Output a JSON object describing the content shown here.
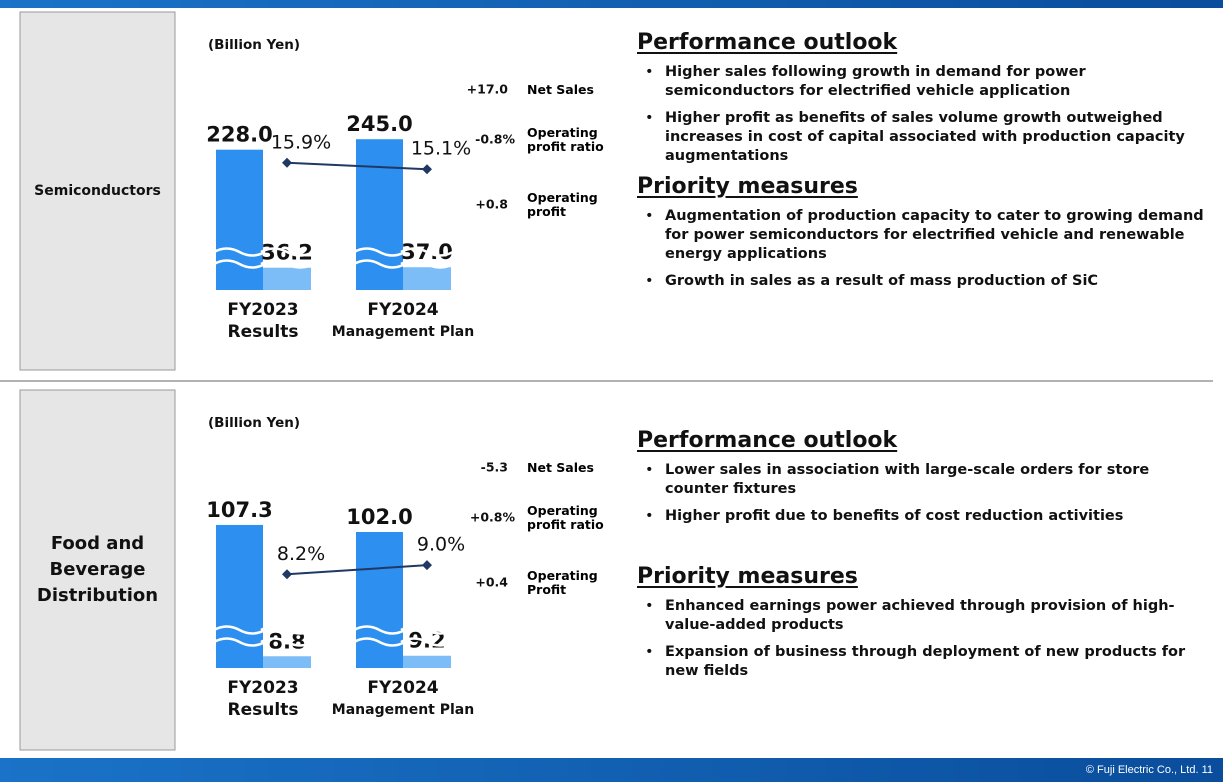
{
  "footer": "© Fuji Electric Co., Ltd. 11",
  "chart_data": [
    {
      "type": "bar",
      "segment": "Semiconductors",
      "unit": "(Billion Yen)",
      "categories": [
        "FY2023",
        "FY2024"
      ],
      "category_sublabels": [
        "Results",
        "Management Plan"
      ],
      "series": [
        {
          "name": "Net Sales",
          "color": "#2d8ff0",
          "values": [
            228.0,
            245.0
          ],
          "value_labels": [
            "228.0",
            "245.0"
          ],
          "change": "+17.0"
        },
        {
          "name": "Operating profit ratio",
          "type": "line",
          "axis": "y2",
          "color": "#1f3864",
          "values": [
            15.9,
            15.1
          ],
          "value_labels": [
            "15.9%",
            "15.1%"
          ],
          "change": "-0.8%"
        },
        {
          "name": "Operating profit",
          "color": "#7cbcf7",
          "values": [
            36.2,
            37.0
          ],
          "value_labels": [
            "36.2",
            "37.0"
          ],
          "change": "+0.8"
        }
      ],
      "ylim": [
        0,
        260
      ],
      "y2lim": [
        0,
        20
      ]
    },
    {
      "type": "bar",
      "segment": "Food and Beverage Distribution",
      "unit": "(Billion Yen)",
      "categories": [
        "FY2023",
        "FY2024"
      ],
      "category_sublabels": [
        "Results",
        "Management Plan"
      ],
      "series": [
        {
          "name": "Net Sales",
          "color": "#2d8ff0",
          "values": [
            107.3,
            102.0
          ],
          "value_labels": [
            "107.3",
            "102.0"
          ],
          "change": "-5.3"
        },
        {
          "name": "Operating profit ratio",
          "type": "line",
          "axis": "y2",
          "color": "#1f3864",
          "values": [
            8.2,
            9.0
          ],
          "value_labels": [
            "8.2%",
            "9.0%"
          ],
          "change": "+0.8%"
        },
        {
          "name": "Operating Profit",
          "color": "#7cbcf7",
          "values": [
            8.8,
            9.2
          ],
          "value_labels": [
            "8.8",
            "9.2"
          ],
          "change": "+0.4"
        }
      ],
      "ylim": [
        0,
        120
      ],
      "y2lim": [
        0,
        14
      ]
    }
  ],
  "text_sections": [
    [
      {
        "heading": "Performance outlook",
        "bullets": [
          "Higher sales following growth in demand for power semiconductors for electrified vehicle application",
          "Higher profit as benefits of sales volume growth outweighed increases in cost of capital associated with production capacity augmentations"
        ]
      },
      {
        "heading": "Priority measures",
        "bullets": [
          "Augmentation of production capacity to cater to growing demand for power semiconductors for electrified vehicle and renewable energy applications",
          "Growth in sales as a result of mass production of SiC"
        ]
      }
    ],
    [
      {
        "heading": "Performance outlook",
        "bullets": [
          "Lower sales in association with large-scale orders for store counter fixtures",
          "Higher profit due to benefits of cost reduction activities"
        ]
      },
      {
        "heading": "Priority measures",
        "bullets": [
          "Enhanced earnings power achieved through provision of high-value-added products",
          "Expansion of business through deployment of new products for new fields"
        ]
      }
    ]
  ]
}
